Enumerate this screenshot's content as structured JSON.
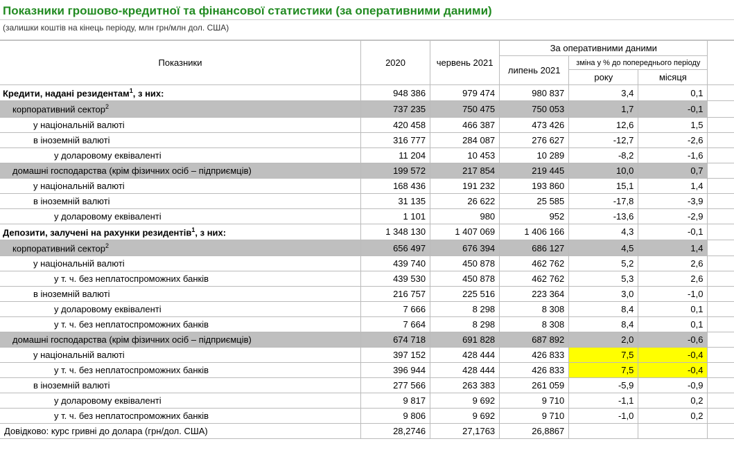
{
  "title": "Показники грошово-кредитної та фінансової статистики (за оперативними даними)",
  "subtitle": "(залишки коштів на кінець періоду, млн грн/млн дол. США)",
  "headers": {
    "indicator": "Показники",
    "y2020": "2020",
    "jun2021": "червень 2021",
    "operative": "За оперативними даними",
    "jul2021": "липень 2021",
    "change": "зміна у % до попереднього періоду",
    "year": "року",
    "month": "місяця"
  },
  "rows": [
    {
      "style": "bold",
      "indent": 0,
      "label": "Кредити, надані резидентам",
      "sup": "1",
      "suffix": ", з них:",
      "v": [
        "948 386",
        "979 474",
        "980 837",
        "3,4",
        "0,1"
      ]
    },
    {
      "style": "gray",
      "indent": 1,
      "label": "корпоративний сектор",
      "sup": "2",
      "v": [
        "737 235",
        "750 475",
        "750 053",
        "1,7",
        "-0,1"
      ]
    },
    {
      "indent": 2,
      "label": "у національній валюті",
      "v": [
        "420 458",
        "466 387",
        "473 426",
        "12,6",
        "1,5"
      ]
    },
    {
      "indent": 2,
      "label": "в іноземній валюті",
      "v": [
        "316 777",
        "284 087",
        "276 627",
        "-12,7",
        "-2,6"
      ]
    },
    {
      "indent": 3,
      "label": "у доларовому еквіваленті",
      "v": [
        "11 204",
        "10 453",
        "10 289",
        "-8,2",
        "-1,6"
      ]
    },
    {
      "style": "gray",
      "indent": 1,
      "label": "домашні господарства (крім фізичних осіб – підприємців)",
      "v": [
        "199 572",
        "217 854",
        "219 445",
        "10,0",
        "0,7"
      ]
    },
    {
      "indent": 2,
      "label": "у національній валюті",
      "v": [
        "168 436",
        "191 232",
        "193 860",
        "15,1",
        "1,4"
      ]
    },
    {
      "indent": 2,
      "label": "в іноземній валюті",
      "v": [
        "31 135",
        "26 622",
        "25 585",
        "-17,8",
        "-3,9"
      ]
    },
    {
      "indent": 3,
      "label": "у доларовому еквіваленті",
      "v": [
        "1 101",
        "980",
        "952",
        "-13,6",
        "-2,9"
      ]
    },
    {
      "style": "bold",
      "indent": 0,
      "label": "Депозити, залучені на рахунки резидентів",
      "sup": "1",
      "suffix": ", з них:",
      "v": [
        "1 348 130",
        "1 407 069",
        "1 406 166",
        "4,3",
        "-0,1"
      ]
    },
    {
      "style": "gray",
      "indent": 1,
      "label": "корпоративний сектор",
      "sup": "2",
      "v": [
        "656 497",
        "676 394",
        "686 127",
        "4,5",
        "1,4"
      ]
    },
    {
      "indent": 2,
      "label": "у національній валюті",
      "v": [
        "439 740",
        "450 878",
        "462 762",
        "5,2",
        "2,6"
      ]
    },
    {
      "indent": 3,
      "label": "у т. ч. без неплатоспроможних банків",
      "v": [
        "439 530",
        "450 878",
        "462 762",
        "5,3",
        "2,6"
      ]
    },
    {
      "indent": 2,
      "label": "в іноземній валюті",
      "v": [
        "216 757",
        "225 516",
        "223 364",
        "3,0",
        "-1,0"
      ]
    },
    {
      "indent": 3,
      "label": "у доларовому еквіваленті",
      "v": [
        "7 666",
        "8 298",
        "8 308",
        "8,4",
        "0,1"
      ]
    },
    {
      "indent": 3,
      "label": "у т. ч. без неплатоспроможних банків",
      "v": [
        "7 664",
        "8 298",
        "8 308",
        "8,4",
        "0,1"
      ]
    },
    {
      "style": "gray",
      "indent": 1,
      "label": "домашні господарства (крім фізичних осіб – підприємців)",
      "v": [
        "674 718",
        "691 828",
        "687 892",
        "2,0",
        "-0,6"
      ]
    },
    {
      "indent": 2,
      "label": "у національній валюті",
      "v": [
        "397 152",
        "428 444",
        "426 833",
        "7,5",
        "-0,4"
      ],
      "hl": [
        3,
        4
      ]
    },
    {
      "indent": 3,
      "label": "у т. ч. без неплатоспроможних банків",
      "v": [
        "396 944",
        "428 444",
        "426 833",
        "7,5",
        "-0,4"
      ],
      "hl": [
        3,
        4
      ]
    },
    {
      "indent": 2,
      "label": "в іноземній валюті",
      "v": [
        "277 566",
        "263 383",
        "261 059",
        "-5,9",
        "-0,9"
      ]
    },
    {
      "indent": 3,
      "label": "у доларовому еквіваленті",
      "v": [
        "9 817",
        "9 692",
        "9 710",
        "-1,1",
        "0,2"
      ]
    },
    {
      "indent": 3,
      "label": "у т. ч. без неплатоспроможних банків",
      "v": [
        "9 806",
        "9 692",
        "9 710",
        "-1,0",
        "0,2"
      ]
    },
    {
      "indent": 0,
      "label": "Довідково: курс гривні до долара (грн/дол. США)",
      "v": [
        "28,2746",
        "27,1763",
        "26,8867",
        "",
        ""
      ]
    }
  ],
  "style": {
    "title_color": "#228B22",
    "gray_bg": "#bfbfbf",
    "highlight_bg": "#ffff00",
    "border_color": "#bbbbbb",
    "font_family": "Arial",
    "base_fontsize": 13
  }
}
